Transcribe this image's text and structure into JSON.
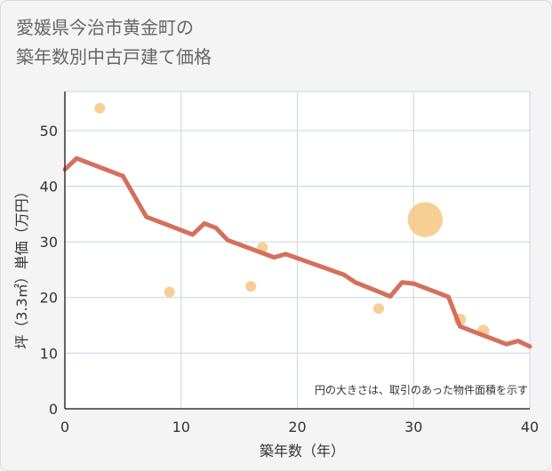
{
  "title_lines": [
    "愛媛県今治市黄金町の",
    "築年数別中古戸建て価格"
  ],
  "chart_data": {
    "type": "scatter+line",
    "title": "愛媛県今治市黄金町の築年数別中古戸建て価格",
    "xlabel": "築年数（年）",
    "ylabel": "坪（3.3㎡）単価（万円）",
    "xlim": [
      0,
      40
    ],
    "ylim": [
      0,
      57
    ],
    "x_ticks": [
      0,
      10,
      20,
      30,
      40
    ],
    "y_ticks": [
      0,
      10,
      20,
      30,
      40,
      50
    ],
    "grid": true,
    "note": "円の大きさは、取引のあった物件面積を示す",
    "scatter": [
      {
        "x": 3,
        "y": 54,
        "size": 1
      },
      {
        "x": 9,
        "y": 21,
        "size": 1
      },
      {
        "x": 16,
        "y": 22,
        "size": 1
      },
      {
        "x": 17,
        "y": 29,
        "size": 1
      },
      {
        "x": 27,
        "y": 18,
        "size": 1
      },
      {
        "x": 31,
        "y": 34,
        "size": 4.2
      },
      {
        "x": 34,
        "y": 16,
        "size": 1.3
      },
      {
        "x": 36,
        "y": 14,
        "size": 1.3
      }
    ],
    "line": {
      "x": [
        0,
        1,
        5,
        7,
        11,
        12,
        13,
        14,
        18,
        19,
        24,
        25,
        28,
        29,
        30,
        33,
        34,
        38,
        39,
        40
      ],
      "y": [
        43,
        45,
        41.8,
        34.5,
        31.3,
        33.3,
        32.5,
        30.3,
        27.2,
        27.8,
        24.1,
        22.7,
        20.2,
        22.7,
        22.5,
        20.1,
        14.8,
        11.6,
        12.2,
        11.2
      ]
    },
    "colors": {
      "line": "#d4705c",
      "scatter": "#f5c47e",
      "grid": "#c8d6e2",
      "axis": "#333333",
      "tick_text": "#333333",
      "label_text": "#333333"
    }
  }
}
